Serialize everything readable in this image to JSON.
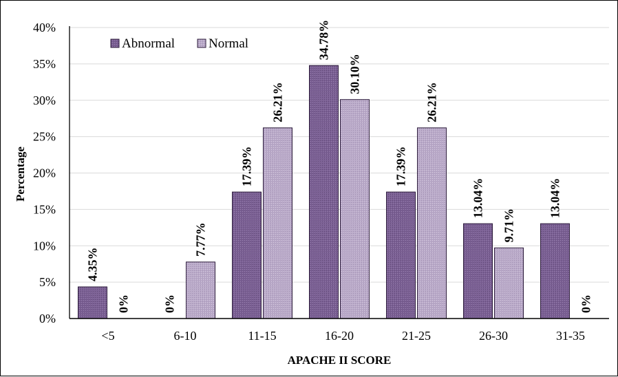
{
  "chart_data": {
    "type": "bar",
    "categories": [
      "<5",
      "6-10",
      "11-15",
      "16-20",
      "21-25",
      "26-30",
      "31-35"
    ],
    "series": [
      {
        "name": "Abnormal",
        "values": [
          4.35,
          0,
          17.39,
          34.78,
          17.39,
          13.04,
          13.04
        ],
        "labels": [
          "4.35%",
          "0%",
          "17.39%",
          "34.78%",
          "17.39%",
          "13.04%",
          "13.04%"
        ],
        "color": "#7a5f93"
      },
      {
        "name": "Normal",
        "values": [
          0,
          7.77,
          26.21,
          30.1,
          26.21,
          9.71,
          0
        ],
        "labels": [
          "0%",
          "7.77%",
          "26.21%",
          "30.10%",
          "26.21%",
          "9.71%",
          "0%"
        ],
        "color": "#b9a9c8"
      }
    ],
    "y_ticks": [
      "0%",
      "5%",
      "10%",
      "15%",
      "20%",
      "25%",
      "30%",
      "35%",
      "40%"
    ],
    "ylim": [
      0,
      40
    ],
    "xlabel": "APACHE II SCORE",
    "ylabel": "Percentage",
    "grid": true,
    "legend_position": "top-left"
  }
}
